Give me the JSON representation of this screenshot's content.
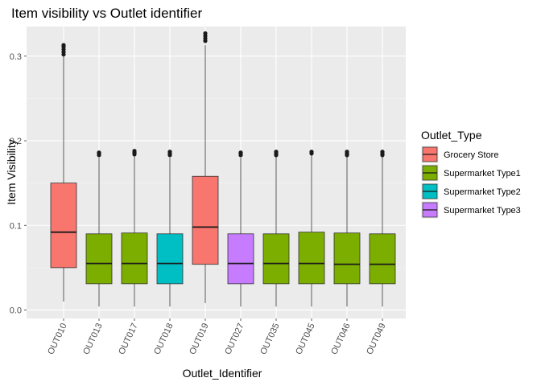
{
  "chart_data": {
    "type": "boxplot",
    "title": "Item visibility vs Outlet identifier",
    "xlabel": "Outlet_Identifier",
    "ylabel": "Item Visibility",
    "ylim": [
      -0.01,
      0.335
    ],
    "yticks": [
      0.0,
      0.1,
      0.2,
      0.3
    ],
    "ytick_labels": [
      "0.0",
      "0.1",
      "0.2",
      "0.3"
    ],
    "grid": true,
    "legend_position": "right",
    "legend_title": "Outlet_Type",
    "legend": [
      {
        "label": "Grocery Store",
        "color": "#F8766D"
      },
      {
        "label": "Supermarket Type1",
        "color": "#7CAE00"
      },
      {
        "label": "Supermarket Type2",
        "color": "#00BFC4"
      },
      {
        "label": "Supermarket Type3",
        "color": "#C77CFF"
      }
    ],
    "categories": [
      "OUT010",
      "OUT013",
      "OUT017",
      "OUT018",
      "OUT019",
      "OUT027",
      "OUT035",
      "OUT045",
      "OUT046",
      "OUT049"
    ],
    "boxes": [
      {
        "category": "OUT010",
        "type": "Grocery Store",
        "min": 0.01,
        "q1": 0.05,
        "median": 0.092,
        "q3": 0.15,
        "max": 0.3,
        "outliers": [
          0.302,
          0.305,
          0.308,
          0.311,
          0.313
        ]
      },
      {
        "category": "OUT013",
        "type": "Supermarket Type1",
        "min": 0.004,
        "q1": 0.031,
        "median": 0.055,
        "q3": 0.09,
        "max": 0.18,
        "outliers": [
          0.183,
          0.185,
          0.186
        ]
      },
      {
        "category": "OUT017",
        "type": "Supermarket Type1",
        "min": 0.004,
        "q1": 0.031,
        "median": 0.055,
        "q3": 0.091,
        "max": 0.182,
        "outliers": [
          0.184,
          0.186,
          0.188
        ]
      },
      {
        "category": "OUT018",
        "type": "Supermarket Type2",
        "min": 0.004,
        "q1": 0.031,
        "median": 0.055,
        "q3": 0.09,
        "max": 0.18,
        "outliers": [
          0.183,
          0.185,
          0.187
        ]
      },
      {
        "category": "OUT019",
        "type": "Grocery Store",
        "min": 0.008,
        "q1": 0.054,
        "median": 0.098,
        "q3": 0.158,
        "max": 0.313,
        "outliers": [
          0.318,
          0.321,
          0.324,
          0.327
        ]
      },
      {
        "category": "OUT027",
        "type": "Supermarket Type3",
        "min": 0.004,
        "q1": 0.031,
        "median": 0.055,
        "q3": 0.09,
        "max": 0.18,
        "outliers": [
          0.183,
          0.185,
          0.186
        ]
      },
      {
        "category": "OUT035",
        "type": "Supermarket Type1",
        "min": 0.004,
        "q1": 0.031,
        "median": 0.055,
        "q3": 0.09,
        "max": 0.181,
        "outliers": [
          0.183,
          0.185,
          0.187
        ]
      },
      {
        "category": "OUT045",
        "type": "Supermarket Type1",
        "min": 0.004,
        "q1": 0.031,
        "median": 0.055,
        "q3": 0.092,
        "max": 0.183,
        "outliers": [
          0.185,
          0.187
        ]
      },
      {
        "category": "OUT046",
        "type": "Supermarket Type1",
        "min": 0.004,
        "q1": 0.031,
        "median": 0.054,
        "q3": 0.091,
        "max": 0.181,
        "outliers": [
          0.183,
          0.185,
          0.187
        ]
      },
      {
        "category": "OUT049",
        "type": "Supermarket Type1",
        "min": 0.004,
        "q1": 0.031,
        "median": 0.054,
        "q3": 0.09,
        "max": 0.181,
        "outliers": [
          0.183,
          0.185,
          0.187
        ]
      }
    ]
  }
}
